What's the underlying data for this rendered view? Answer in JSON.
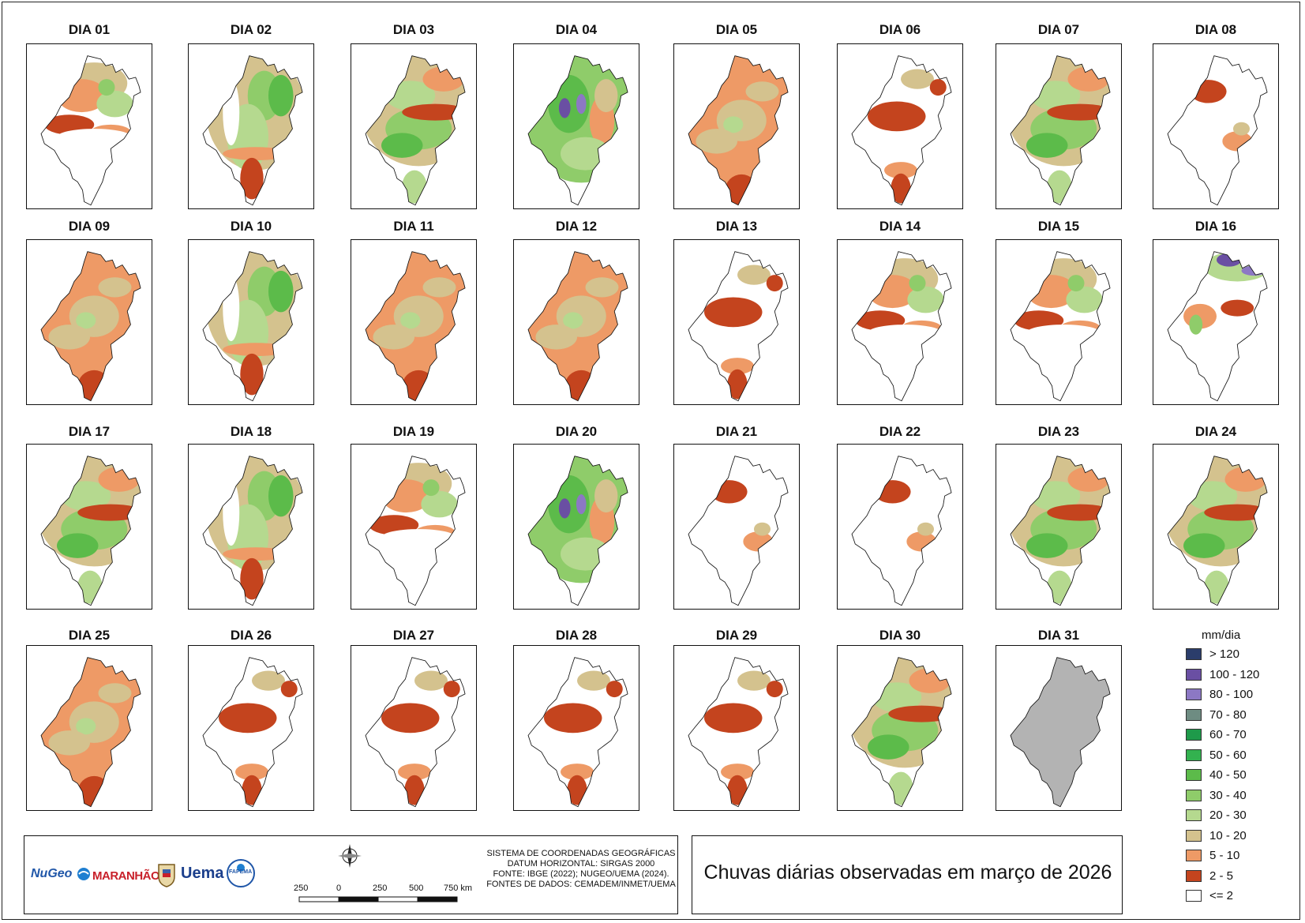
{
  "map_title": "Chuvas diárias observadas em março de 2026",
  "days": [
    {
      "label": "DIA 01",
      "variant": 0
    },
    {
      "label": "DIA 02",
      "variant": 1
    },
    {
      "label": "DIA 03",
      "variant": 2
    },
    {
      "label": "DIA 04",
      "variant": 3
    },
    {
      "label": "DIA 05",
      "variant": 4
    },
    {
      "label": "DIA 06",
      "variant": 5
    },
    {
      "label": "DIA 07",
      "variant": 2
    },
    {
      "label": "DIA 08",
      "variant": 6
    },
    {
      "label": "DIA 09",
      "variant": 4
    },
    {
      "label": "DIA 10",
      "variant": 1
    },
    {
      "label": "DIA 11",
      "variant": 4
    },
    {
      "label": "DIA 12",
      "variant": 4
    },
    {
      "label": "DIA 13",
      "variant": 5
    },
    {
      "label": "DIA 14",
      "variant": 0
    },
    {
      "label": "DIA 15",
      "variant": 0
    },
    {
      "label": "DIA 16",
      "variant": 7
    },
    {
      "label": "DIA 17",
      "variant": 2
    },
    {
      "label": "DIA 18",
      "variant": 1
    },
    {
      "label": "DIA 19",
      "variant": 0
    },
    {
      "label": "DIA 20",
      "variant": 3
    },
    {
      "label": "DIA 21",
      "variant": 6
    },
    {
      "label": "DIA 22",
      "variant": 6
    },
    {
      "label": "DIA 23",
      "variant": 2
    },
    {
      "label": "DIA 24",
      "variant": 2
    },
    {
      "label": "DIA 25",
      "variant": 4
    },
    {
      "label": "DIA 26",
      "variant": 5
    },
    {
      "label": "DIA 27",
      "variant": 5
    },
    {
      "label": "DIA 28",
      "variant": 5
    },
    {
      "label": "DIA 29",
      "variant": 5
    },
    {
      "label": "DIA 30",
      "variant": 2
    },
    {
      "label": "DIA 31",
      "variant": 8
    }
  ],
  "legend": {
    "title": "mm/dia",
    "items": [
      {
        "label": "> 120",
        "color": "#2b3d6b"
      },
      {
        "label": "100 - 120",
        "color": "#6a4fa3"
      },
      {
        "label": "80 - 100",
        "color": "#8c78c4"
      },
      {
        "label": "70 - 80",
        "color": "#6e8c82"
      },
      {
        "label": "60 - 70",
        "color": "#1e9a4a"
      },
      {
        "label": "50 - 60",
        "color": "#33b24f"
      },
      {
        "label": "40 - 50",
        "color": "#5cbb4a"
      },
      {
        "label": "30 - 40",
        "color": "#8fcc6a"
      },
      {
        "label": "20 - 30",
        "color": "#b5d98f"
      },
      {
        "label": "10 - 20",
        "color": "#d4c28e"
      },
      {
        "label": "5 - 10",
        "color": "#ee9a66"
      },
      {
        "label": "2 - 5",
        "color": "#c4441e"
      },
      {
        "label": "<= 2",
        "color": "#ffffff"
      }
    ]
  },
  "footer": {
    "crs_lines": [
      "SISTEMA DE COORDENADAS GEOGRÁFICAS",
      "DATUM HORIZONTAL: SIRGAS 2000",
      "FONTE: IBGE (2022); NUGEO/UEMA (2024).",
      "FONTES DE DADOS: CEMADEM/INMET/UEMA"
    ],
    "scale_labels": [
      "250",
      "0",
      "250",
      "500",
      "750 km"
    ],
    "logos": [
      "NuGeo",
      "MARANHÃO",
      "Uema",
      "FAPEMA"
    ]
  },
  "colors": {
    "no_data": "#b3b3b3",
    "border": "#111111"
  }
}
